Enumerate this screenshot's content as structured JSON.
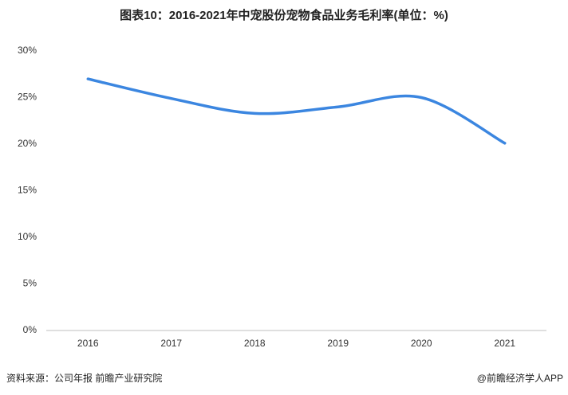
{
  "chart_data": {
    "type": "line",
    "title": "图表10：2016-2021年中宠股份宠物食品业务毛利率(单位：%)",
    "categories": [
      "2016",
      "2017",
      "2018",
      "2019",
      "2020",
      "2021"
    ],
    "series": [
      {
        "name": "毛利率",
        "color": "#3b86e0",
        "values": [
          27.0,
          24.9,
          23.3,
          24.0,
          25.0,
          20.1
        ]
      }
    ],
    "ylim": [
      0,
      30
    ],
    "yticks": [
      {
        "value": 0,
        "label": "0%"
      },
      {
        "value": 5,
        "label": "5%"
      },
      {
        "value": 10,
        "label": "10%"
      },
      {
        "value": 15,
        "label": "15%"
      },
      {
        "value": 20,
        "label": "20%"
      },
      {
        "value": 25,
        "label": "25%"
      },
      {
        "value": 30,
        "label": "30%"
      }
    ],
    "smooth": true,
    "source": "资料来源：公司年报 前瞻产业研究院",
    "credit": "@前瞻经济学人APP"
  }
}
